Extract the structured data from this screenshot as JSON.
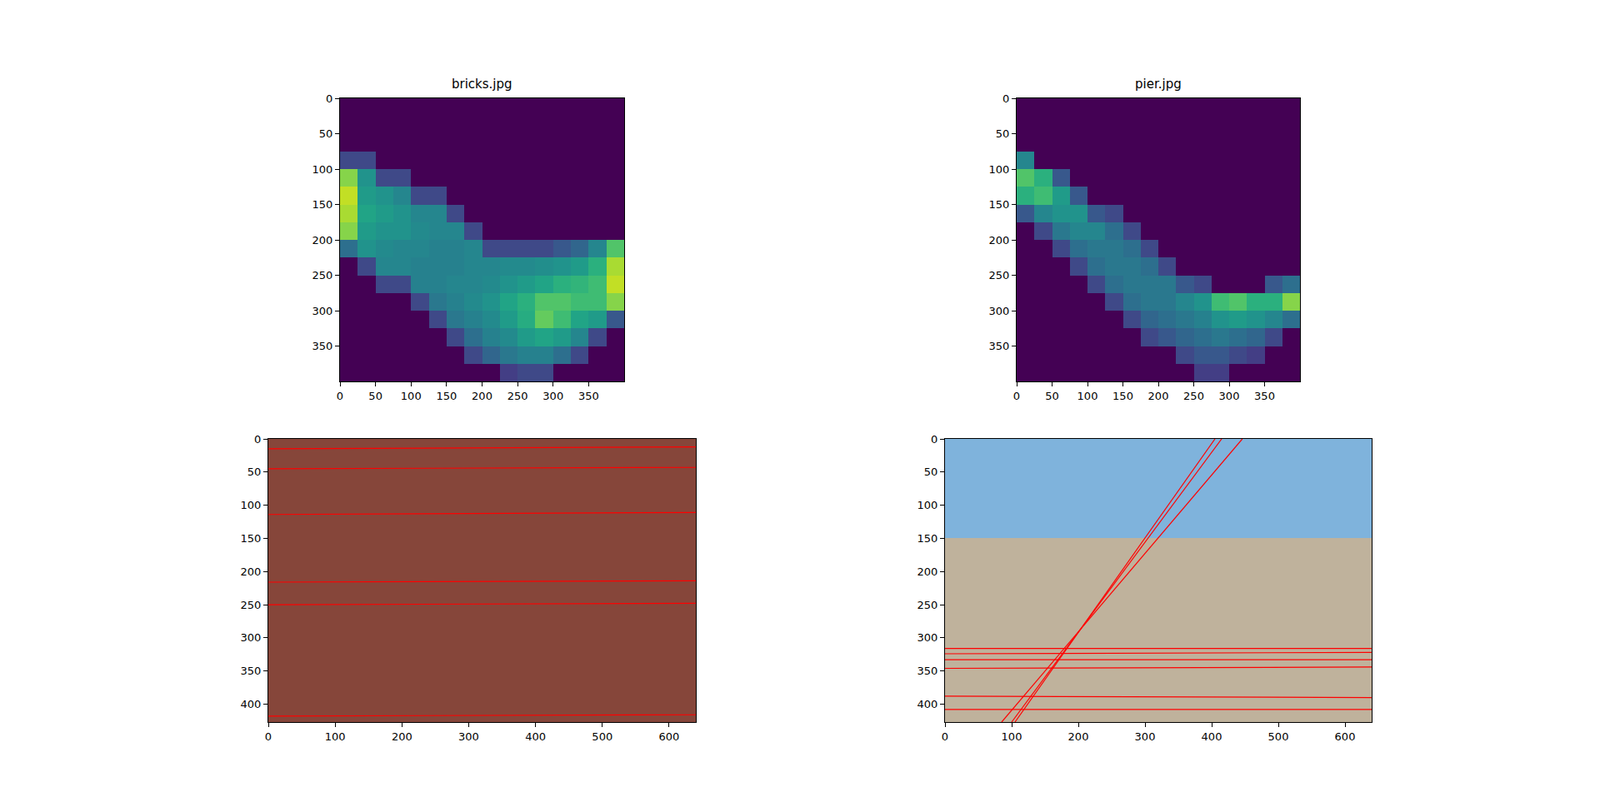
{
  "chart_data": [
    {
      "type": "heatmap",
      "title": "bricks.jpg",
      "color": "Viridis",
      "x": [
        0,
        25,
        50,
        75,
        100,
        125,
        150,
        175,
        200,
        225,
        250,
        275,
        300,
        325,
        350,
        375,
        400
      ],
      "y": [
        0,
        25,
        50,
        75,
        100,
        125,
        150,
        175,
        200,
        225,
        250,
        275,
        300,
        325,
        350,
        375,
        400
      ],
      "z": [
        [
          0,
          0,
          0,
          0,
          0,
          0,
          0,
          0,
          0,
          0,
          0,
          0,
          0,
          0,
          0,
          0
        ],
        [
          0,
          0,
          0,
          0,
          0,
          0,
          0,
          0,
          0,
          0,
          0,
          0,
          0,
          0,
          0,
          0
        ],
        [
          0,
          0,
          0,
          0,
          0,
          0,
          0,
          0,
          0,
          0,
          0,
          0,
          0,
          0,
          0,
          0
        ],
        [
          12,
          12,
          0,
          0,
          0,
          0,
          0,
          0,
          0,
          0,
          0,
          0,
          0,
          0,
          0,
          0
        ],
        [
          45,
          28,
          12,
          12,
          0,
          0,
          0,
          0,
          0,
          0,
          0,
          0,
          0,
          0,
          0,
          0
        ],
        [
          50,
          30,
          28,
          25,
          12,
          12,
          0,
          0,
          0,
          0,
          0,
          0,
          0,
          0,
          0,
          0
        ],
        [
          48,
          32,
          30,
          28,
          25,
          25,
          12,
          0,
          0,
          0,
          0,
          0,
          0,
          0,
          0,
          0
        ],
        [
          45,
          30,
          28,
          28,
          26,
          25,
          25,
          12,
          0,
          0,
          0,
          0,
          0,
          0,
          0,
          0
        ],
        [
          20,
          28,
          26,
          25,
          25,
          24,
          24,
          25,
          12,
          12,
          12,
          12,
          15,
          18,
          25,
          40
        ],
        [
          0,
          12,
          25,
          25,
          24,
          24,
          24,
          25,
          25,
          26,
          26,
          27,
          28,
          30,
          35,
          48
        ],
        [
          0,
          0,
          12,
          12,
          24,
          24,
          25,
          25,
          26,
          28,
          30,
          32,
          35,
          36,
          38,
          50
        ],
        [
          0,
          0,
          0,
          0,
          12,
          22,
          24,
          26,
          28,
          32,
          35,
          40,
          40,
          38,
          38,
          45
        ],
        [
          0,
          0,
          0,
          0,
          0,
          12,
          22,
          24,
          26,
          30,
          34,
          42,
          38,
          32,
          30,
          15
        ],
        [
          0,
          0,
          0,
          0,
          0,
          0,
          12,
          20,
          24,
          26,
          30,
          32,
          30,
          25,
          12,
          0
        ],
        [
          0,
          0,
          0,
          0,
          0,
          0,
          0,
          12,
          18,
          22,
          24,
          24,
          20,
          12,
          0,
          0
        ],
        [
          0,
          0,
          0,
          0,
          0,
          0,
          0,
          0,
          0,
          10,
          12,
          12,
          0,
          0,
          0,
          0
        ]
      ],
      "zlim": [
        0,
        55
      ],
      "xlim": [
        0,
        400
      ],
      "ylim": [
        400,
        0
      ],
      "xticks": [
        0,
        50,
        100,
        150,
        200,
        250,
        300,
        350
      ],
      "yticks": [
        0,
        50,
        100,
        150,
        200,
        250,
        300,
        350
      ]
    },
    {
      "type": "heatmap",
      "title": "pier.jpg",
      "color": "Viridis",
      "x": [
        0,
        25,
        50,
        75,
        100,
        125,
        150,
        175,
        200,
        225,
        250,
        275,
        300,
        325,
        350,
        375,
        400
      ],
      "y": [
        0,
        25,
        50,
        75,
        100,
        125,
        150,
        175,
        200,
        225,
        250,
        275,
        300,
        325,
        350,
        375,
        400
      ],
      "z": [
        [
          0,
          0,
          0,
          0,
          0,
          0,
          0,
          0,
          0,
          0,
          0,
          0,
          0,
          0,
          0,
          0
        ],
        [
          0,
          0,
          0,
          0,
          0,
          0,
          0,
          0,
          0,
          0,
          0,
          0,
          0,
          0,
          0,
          0
        ],
        [
          0,
          0,
          0,
          0,
          0,
          0,
          0,
          0,
          0,
          0,
          0,
          0,
          0,
          0,
          0,
          0
        ],
        [
          25,
          0,
          0,
          0,
          0,
          0,
          0,
          0,
          0,
          0,
          0,
          0,
          0,
          0,
          0,
          0
        ],
        [
          40,
          35,
          15,
          0,
          0,
          0,
          0,
          0,
          0,
          0,
          0,
          0,
          0,
          0,
          0,
          0
        ],
        [
          35,
          38,
          30,
          15,
          0,
          0,
          0,
          0,
          0,
          0,
          0,
          0,
          0,
          0,
          0,
          0
        ],
        [
          15,
          25,
          28,
          28,
          15,
          12,
          0,
          0,
          0,
          0,
          0,
          0,
          0,
          0,
          0,
          0
        ],
        [
          0,
          12,
          22,
          25,
          25,
          20,
          12,
          0,
          0,
          0,
          0,
          0,
          0,
          0,
          0,
          0
        ],
        [
          0,
          0,
          12,
          20,
          22,
          22,
          20,
          12,
          0,
          0,
          0,
          0,
          0,
          0,
          0,
          0
        ],
        [
          0,
          0,
          0,
          12,
          20,
          22,
          22,
          20,
          12,
          0,
          0,
          0,
          0,
          0,
          0,
          0
        ],
        [
          0,
          0,
          0,
          0,
          12,
          20,
          22,
          22,
          22,
          15,
          12,
          0,
          0,
          0,
          15,
          20
        ],
        [
          0,
          0,
          0,
          0,
          0,
          12,
          20,
          22,
          22,
          25,
          28,
          38,
          40,
          35,
          35,
          45
        ],
        [
          0,
          0,
          0,
          0,
          0,
          0,
          12,
          18,
          20,
          22,
          24,
          28,
          30,
          28,
          25,
          20
        ],
        [
          0,
          0,
          0,
          0,
          0,
          0,
          0,
          12,
          15,
          18,
          20,
          22,
          20,
          18,
          12,
          0
        ],
        [
          0,
          0,
          0,
          0,
          0,
          0,
          0,
          0,
          0,
          12,
          15,
          15,
          12,
          10,
          0,
          0
        ],
        [
          0,
          0,
          0,
          0,
          0,
          0,
          0,
          0,
          0,
          0,
          10,
          10,
          0,
          0,
          0,
          0
        ]
      ],
      "zlim": [
        0,
        55
      ],
      "xlim": [
        0,
        400
      ],
      "ylim": [
        400,
        0
      ],
      "xticks": [
        0,
        50,
        100,
        150,
        200,
        250,
        300,
        350
      ],
      "yticks": [
        0,
        50,
        100,
        150,
        200,
        250,
        300,
        350
      ]
    },
    {
      "type": "line",
      "color": "red",
      "xlim": [
        0,
        640
      ],
      "ylim": [
        427,
        0
      ],
      "xticks": [
        0,
        100,
        200,
        300,
        400,
        500,
        600
      ],
      "yticks": [
        0,
        50,
        100,
        150,
        200,
        250,
        300,
        350,
        400
      ],
      "series": [
        {
          "x": [
            0,
            640
          ],
          "y": [
            15,
            12
          ]
        },
        {
          "x": [
            0,
            640
          ],
          "y": [
            45,
            43
          ]
        },
        {
          "x": [
            0,
            640
          ],
          "y": [
            114,
            111
          ]
        },
        {
          "x": [
            0,
            640
          ],
          "y": [
            216,
            214
          ]
        },
        {
          "x": [
            0,
            640
          ],
          "y": [
            250,
            248
          ]
        },
        {
          "x": [
            0,
            640
          ],
          "y": [
            418,
            416
          ]
        }
      ]
    },
    {
      "type": "line",
      "color": "red",
      "xlim": [
        0,
        640
      ],
      "ylim": [
        427,
        0
      ],
      "xticks": [
        0,
        100,
        200,
        300,
        400,
        500,
        600
      ],
      "yticks": [
        0,
        50,
        100,
        150,
        200,
        250,
        300,
        350,
        400
      ],
      "series": [
        {
          "x": [
            100,
            415
          ],
          "y": [
            427,
            0
          ]
        },
        {
          "x": [
            85,
            446
          ],
          "y": [
            427,
            0
          ]
        },
        {
          "x": [
            105,
            405
          ],
          "y": [
            427,
            0
          ]
        },
        {
          "x": [
            0,
            640
          ],
          "y": [
            316,
            316
          ]
        },
        {
          "x": [
            0,
            640
          ],
          "y": [
            324,
            322
          ]
        },
        {
          "x": [
            0,
            640
          ],
          "y": [
            333,
            333
          ]
        },
        {
          "x": [
            0,
            640
          ],
          "y": [
            346,
            344
          ]
        },
        {
          "x": [
            0,
            640
          ],
          "y": [
            388,
            390
          ]
        },
        {
          "x": [
            0,
            640
          ],
          "y": [
            408,
            408
          ]
        }
      ]
    }
  ]
}
